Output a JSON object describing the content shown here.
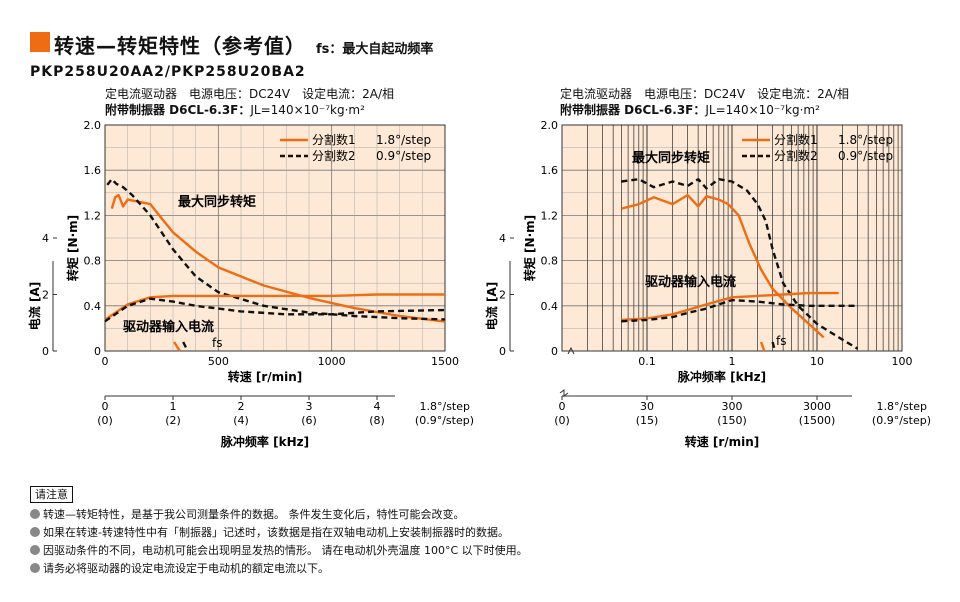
{
  "page": {
    "title": "转速—转矩特性（参考值）",
    "subtitle": "fs：最大自起动频率",
    "model": "PKP258U20AA2/PKP258U20BA2",
    "conditions": {
      "line1": "定电流驱动器　电源电压：DC24V　设定电流：2A/相",
      "line2_label": "附带制振器 D6CL-6.3F：",
      "line2_value": "JL=140×10⁻⁷kg·m²"
    }
  },
  "chart_data": [
    {
      "type": "line",
      "xlabel": "转速 [r/min]",
      "ylabel": "转矩 [N·m]",
      "y2label": "电流 [A]",
      "xlim": [
        0,
        1500
      ],
      "ylim": [
        0,
        2.0
      ],
      "y2lim": [
        0,
        8
      ],
      "x_ticks": [
        "0",
        "500",
        "1000",
        "1500"
      ],
      "y_ticks": [
        "0",
        "0.4",
        "0.8",
        "1.2",
        "1.6",
        "2.0"
      ],
      "y2_ticks": [
        "0",
        "2",
        "4"
      ],
      "grid": true,
      "legend": "top-right",
      "legend_entries": [
        {
          "name": "分割数1",
          "step": "1.8°/step",
          "style": "solid",
          "color": "#ee6d14"
        },
        {
          "name": "分割数2",
          "step": "0.9°/step",
          "style": "dashed",
          "color": "#111111"
        }
      ],
      "annotations": [
        "最大同步转矩",
        "驱动器输入电流",
        "fs"
      ],
      "secondary_axis": {
        "label": "脉冲频率 [kHz]",
        "ticks": [
          "0",
          "1",
          "2",
          "3",
          "4"
        ],
        "ticks_alt": [
          "(0)",
          "(2)",
          "(4)",
          "(6)",
          "(8)"
        ],
        "step_label": "1.8°/step",
        "step_label_alt": "(0.9°/step)"
      },
      "series": [
        {
          "name": "分割数1",
          "kind": "torque",
          "style": "solid",
          "color": "#ee6d14",
          "x": [
            30,
            45,
            60,
            80,
            100,
            150,
            200,
            260,
            300,
            400,
            500,
            700,
            900,
            1100,
            1300,
            1500
          ],
          "y": [
            1.26,
            1.36,
            1.38,
            1.28,
            1.34,
            1.32,
            1.3,
            1.15,
            1.05,
            0.88,
            0.74,
            0.58,
            0.47,
            0.38,
            0.31,
            0.26
          ]
        },
        {
          "name": "分割数2",
          "kind": "torque",
          "style": "dashed",
          "color": "#111111",
          "x": [
            10,
            30,
            50,
            80,
            120,
            200,
            300,
            400,
            500,
            700,
            900,
            1100,
            1300,
            1500
          ],
          "y": [
            1.47,
            1.52,
            1.48,
            1.45,
            1.38,
            1.2,
            0.9,
            0.66,
            0.52,
            0.4,
            0.34,
            0.31,
            0.29,
            0.28
          ]
        },
        {
          "name": "分割数1",
          "kind": "current",
          "style": "solid",
          "color": "#ee6d14",
          "x": [
            0,
            100,
            200,
            300,
            400,
            600,
            800,
            1000,
            1200,
            1500
          ],
          "y": [
            1.1,
            1.65,
            1.9,
            1.95,
            1.95,
            1.95,
            1.95,
            1.95,
            2.0,
            2.0
          ]
        },
        {
          "name": "分割数2",
          "kind": "current",
          "style": "dashed",
          "color": "#111111",
          "x": [
            0,
            100,
            200,
            300,
            400,
            600,
            800,
            1000,
            1200,
            1500
          ],
          "y": [
            1.05,
            1.6,
            1.85,
            1.75,
            1.6,
            1.4,
            1.3,
            1.3,
            1.4,
            1.45
          ]
        },
        {
          "name": "fs",
          "kind": "fs",
          "style": "solid",
          "color": "#ee6d14",
          "x": [
            305,
            330
          ],
          "y": [
            0.08,
            0.0
          ]
        },
        {
          "name": "fs",
          "kind": "fs",
          "style": "dashed",
          "color": "#111111",
          "x": [
            345,
            365
          ],
          "y": [
            0.08,
            0.0
          ]
        }
      ]
    },
    {
      "type": "line",
      "xscale": "log",
      "xlabel": "脉冲频率 [kHz]",
      "ylabel": "转矩 [N·m]",
      "y2label": "电流 [A]",
      "xlim": [
        0.01,
        100
      ],
      "ylim": [
        0,
        2.0
      ],
      "y2lim": [
        0,
        8
      ],
      "x_ticks": [
        "0.1",
        "1",
        "10",
        "100"
      ],
      "y_ticks": [
        "0",
        "0.4",
        "0.8",
        "1.2",
        "1.6",
        "2.0"
      ],
      "y2_ticks": [
        "0",
        "2",
        "4"
      ],
      "grid": true,
      "legend": "top-right",
      "legend_entries": [
        {
          "name": "分割数1",
          "step": "1.8°/step",
          "style": "solid",
          "color": "#ee6d14"
        },
        {
          "name": "分割数2",
          "step": "0.9°/step",
          "style": "dashed",
          "color": "#111111"
        }
      ],
      "annotations": [
        "最大同步转矩",
        "驱动器输入电流",
        "fs"
      ],
      "secondary_axis": {
        "label": "转速 [r/min]",
        "ticks": [
          "0",
          "30",
          "300",
          "3000"
        ],
        "ticks_alt": [
          "(0)",
          "(15)",
          "(150)",
          "(1500)"
        ],
        "step_label": "1.8°/step",
        "step_label_alt": "(0.9°/step)"
      },
      "series": [
        {
          "name": "分割数1",
          "kind": "torque",
          "style": "solid",
          "color": "#ee6d14",
          "x": [
            0.05,
            0.08,
            0.12,
            0.2,
            0.3,
            0.4,
            0.5,
            0.7,
            0.9,
            1.2,
            1.6,
            2.2,
            3,
            5,
            8,
            12
          ],
          "y": [
            1.26,
            1.3,
            1.36,
            1.3,
            1.38,
            1.28,
            1.37,
            1.34,
            1.3,
            1.2,
            0.95,
            0.72,
            0.55,
            0.38,
            0.24,
            0.12
          ]
        },
        {
          "name": "分割数2",
          "kind": "torque",
          "style": "dashed",
          "color": "#111111",
          "x": [
            0.05,
            0.08,
            0.12,
            0.2,
            0.3,
            0.4,
            0.5,
            0.7,
            1,
            1.5,
            2,
            2.5,
            3,
            4,
            6,
            10,
            20,
            30
          ],
          "y": [
            1.5,
            1.52,
            1.45,
            1.5,
            1.46,
            1.52,
            1.44,
            1.52,
            1.5,
            1.42,
            1.3,
            1.15,
            0.9,
            0.6,
            0.4,
            0.24,
            0.1,
            0.02
          ]
        },
        {
          "name": "分割数1",
          "kind": "current",
          "style": "solid",
          "color": "#ee6d14",
          "x": [
            0.05,
            0.1,
            0.2,
            0.3,
            0.5,
            1,
            2,
            4,
            8,
            18
          ],
          "y": [
            1.1,
            1.15,
            1.3,
            1.45,
            1.65,
            1.9,
            1.95,
            2.0,
            2.05,
            2.05
          ]
        },
        {
          "name": "分割数2",
          "kind": "current",
          "style": "dashed",
          "color": "#111111",
          "x": [
            0.05,
            0.1,
            0.2,
            0.3,
            0.5,
            0.7,
            1,
            2,
            4,
            8,
            15,
            30
          ],
          "y": [
            1.05,
            1.1,
            1.2,
            1.35,
            1.5,
            1.65,
            1.8,
            1.75,
            1.65,
            1.6,
            1.6,
            1.6
          ]
        },
        {
          "name": "fs",
          "kind": "fs",
          "style": "solid",
          "color": "#ee6d14",
          "x": [
            2.2,
            2.4
          ],
          "y": [
            0.08,
            0.0
          ]
        },
        {
          "name": "fs",
          "kind": "fs",
          "style": "dashed",
          "color": "#111111",
          "x": [
            3.0,
            3.2
          ],
          "y": [
            0.08,
            0.0
          ]
        }
      ]
    }
  ],
  "notes": {
    "title": "请注意",
    "items": [
      "转速—转矩特性，是基于我公司测量条件的数据。 条件发生变化后，特性可能会改变。",
      "如果在转速-转速特性中有「制振器」记述时，该数据是指在双轴电动机上安装制振器时的数据。",
      "因驱动条件的不同，电动机可能会出现明显发热的情形。 请在电动机外壳温度 100°C 以下时使用。",
      "请务必将驱动器的设定电流设定于电动机的额定电流以下。"
    ]
  }
}
